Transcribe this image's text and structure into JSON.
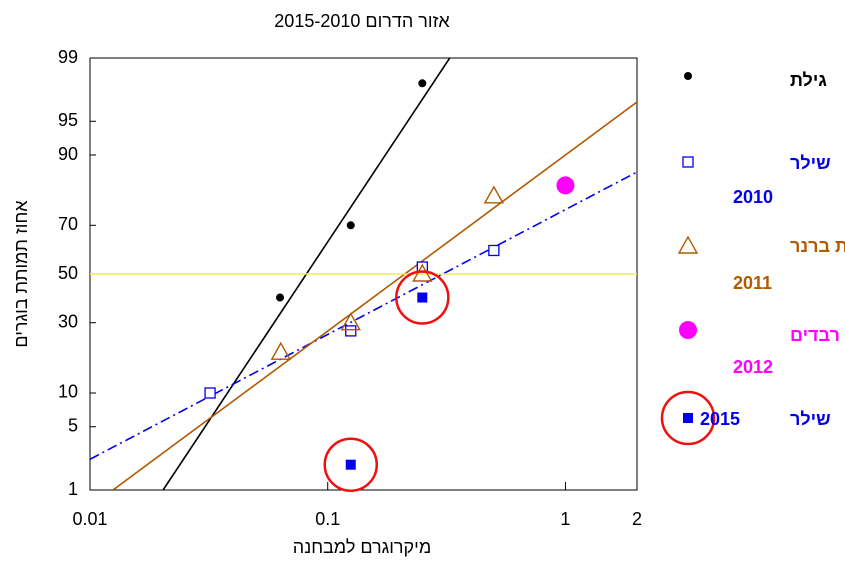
{
  "chart_data": {
    "type": "scatter",
    "title": "אזור הדרום 2015-2010",
    "x_label": "מיקרוגרם למבחנה",
    "y_label": "אחוז תמותת בוגרים",
    "xscale": "log",
    "yscale": "probit",
    "xlim": [
      0.01,
      2
    ],
    "xticks": [
      0.01,
      0.1,
      1,
      2
    ],
    "ylim": [
      1,
      99
    ],
    "yticks": [
      1,
      5,
      10,
      30,
      50,
      70,
      90,
      95,
      99
    ],
    "highlight_color": "#ee1111",
    "series": [
      {
        "name": "גילת",
        "color": "#000000",
        "marker": "dot",
        "x": [
          0.063,
          0.125,
          0.25
        ],
        "values": [
          40,
          70,
          98
        ]
      },
      {
        "name": "שילר",
        "year": "2010",
        "color": "#0000ee",
        "marker": "open-square",
        "x": [
          0.032,
          0.125,
          0.25,
          0.5
        ],
        "values": [
          10,
          27,
          53,
          60
        ]
      },
      {
        "name": "גבעת ברנר",
        "year": "2011",
        "color": "#b35900",
        "marker": "open-triangle",
        "x": [
          0.0635,
          0.125,
          0.25,
          0.5
        ],
        "values": [
          20,
          30,
          50,
          80
        ]
      },
      {
        "name": "רבדים",
        "year": "2012",
        "color": "#ff00ff",
        "marker": "big-circle",
        "x": [
          1
        ],
        "values": [
          83
        ]
      },
      {
        "name": "שילר",
        "year": "2015",
        "color": "#0000ee",
        "marker": "filled-square",
        "highlight": true,
        "x": [
          0.25,
          0.125
        ],
        "values": [
          40,
          2
        ]
      }
    ],
    "lines": [
      {
        "color": "#000000",
        "dash": "solid",
        "x": [
          0.0203,
          0.326
        ],
        "values": [
          1,
          99
        ]
      },
      {
        "color": "#0000ee",
        "dash": "dashdot",
        "x": [
          0.01,
          2
        ],
        "values": [
          2.3,
          86.4
        ]
      },
      {
        "color": "#b35900",
        "dash": "solid",
        "x": [
          0.0125,
          2
        ],
        "values": [
          1,
          96.8
        ]
      },
      {
        "color": "#eeee55",
        "dash": "solid",
        "x": [
          0.01,
          2
        ],
        "values": [
          50,
          50
        ]
      }
    ]
  }
}
